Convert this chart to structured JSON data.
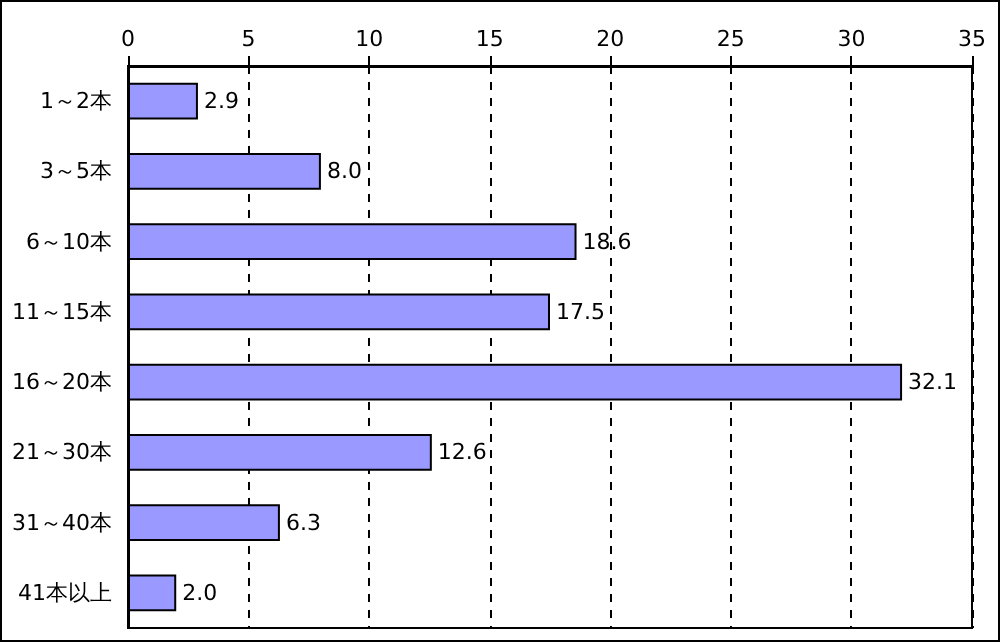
{
  "chart_data": {
    "type": "bar",
    "orientation": "horizontal",
    "categories": [
      "1～2本",
      "3～5本",
      "6～10本",
      "11～15本",
      "16～20本",
      "21～30本",
      "31～40本",
      "41本以上"
    ],
    "values": [
      2.9,
      8.0,
      18.6,
      17.5,
      32.1,
      12.6,
      6.3,
      2.0
    ],
    "color": "#9999ff",
    "xlim": [
      0,
      35
    ],
    "xticks": [
      0,
      5,
      10,
      15,
      20,
      25,
      30,
      35
    ],
    "grid": "x",
    "value_labels": [
      "2.9",
      "8.0",
      "18.6",
      "17.5",
      "32.1",
      "12.6",
      "6.3",
      "2.0"
    ]
  }
}
